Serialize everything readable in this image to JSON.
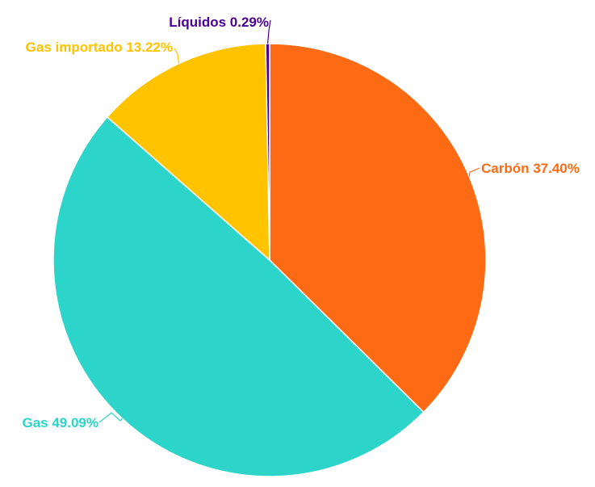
{
  "chart_data": {
    "type": "pie",
    "title": "",
    "slices": [
      {
        "name": "Carbón",
        "value": 37.4,
        "label": "Carbón 37.40%",
        "color": "#ff6a14"
      },
      {
        "name": "Gas",
        "value": 49.09,
        "label": "Gas 49.09%",
        "color": "#2dd4c9"
      },
      {
        "name": "Gas importado",
        "value": 13.22,
        "label": "Gas importado 13.22%",
        "color": "#ffc300"
      },
      {
        "name": "Líquidos",
        "value": 0.29,
        "label": "Líquidos 0.29%",
        "color": "#4b0099"
      }
    ]
  }
}
